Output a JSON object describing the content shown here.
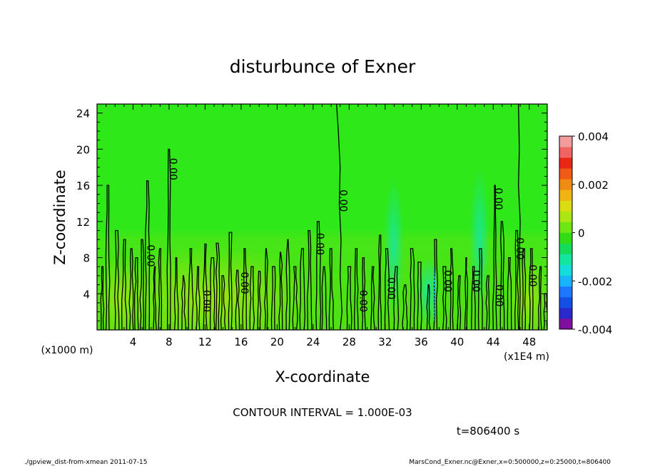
{
  "chart_data": {
    "type": "heatmap",
    "title": "disturbunce of Exner",
    "xlabel": "X-coordinate",
    "ylabel": "Z-coordinate",
    "x_unit_label": "(x1E4 m)",
    "z_unit_label": "(x1000 m)",
    "xlim": [
      0,
      50
    ],
    "ylim": [
      0,
      25
    ],
    "x_ticks": [
      4,
      8,
      12,
      16,
      20,
      24,
      28,
      32,
      36,
      40,
      44,
      48
    ],
    "y_ticks": [
      4,
      8,
      12,
      16,
      20,
      24
    ],
    "contour_interval_text": "CONTOUR INTERVAL = 1.000E-03",
    "time_text": "t=806400 s",
    "colorbar": {
      "range": [
        -0.004,
        0.004
      ],
      "tick_labels": [
        "0.004",
        "0.002",
        "0",
        "-0.002",
        "-0.004"
      ],
      "tick_values": [
        0.004,
        0.002,
        0,
        -0.002,
        -0.004
      ],
      "colors": [
        "#7f0f9f",
        "#2a2acc",
        "#1450e6",
        "#1e78ff",
        "#19b4ff",
        "#14dcdc",
        "#14e6a0",
        "#14dc5a",
        "#32dc14",
        "#6ee614",
        "#aae614",
        "#dcdc14",
        "#f0b414",
        "#f08c14",
        "#f05a14",
        "#e62814",
        "#f06464",
        "#f59b9b"
      ]
    },
    "contour_labels": [
      {
        "x": 8.1,
        "z": 17.8,
        "text": "0.00"
      },
      {
        "x": 27.0,
        "z": 14.3,
        "text": "0.00"
      },
      {
        "x": 5.6,
        "z": 8.2,
        "text": "0.00"
      },
      {
        "x": 11.8,
        "z": 3.2,
        "text": "0.00"
      },
      {
        "x": 16.0,
        "z": 5.2,
        "text": "0.00"
      },
      {
        "x": 24.4,
        "z": 9.5,
        "text": "0.00"
      },
      {
        "x": 29.2,
        "z": 3.2,
        "text": "0.00"
      },
      {
        "x": 32.3,
        "z": 4.6,
        "text": "0.00"
      },
      {
        "x": 38.6,
        "z": 5.4,
        "text": "0.00"
      },
      {
        "x": 41.7,
        "z": 5.4,
        "text": "0.00"
      },
      {
        "x": 44.3,
        "z": 3.8,
        "text": "0.00"
      },
      {
        "x": 44.2,
        "z": 14.5,
        "text": "0.00"
      },
      {
        "x": 46.6,
        "z": 9.0,
        "text": "0.00"
      },
      {
        "x": 48.0,
        "z": 6.0,
        "text": "0.00"
      }
    ]
  },
  "footer": {
    "left": "./gpview_dist-from-xmean  2011-07-15",
    "right": "MarsCond_Exner.nc@Exner,x=0:500000,z=0:25000,t=806400"
  }
}
